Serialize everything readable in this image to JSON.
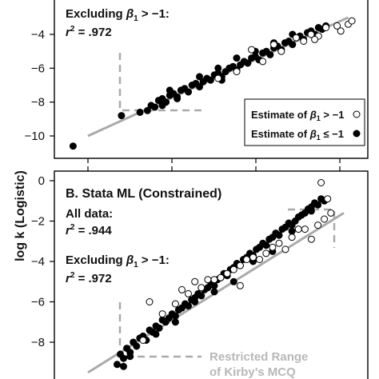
{
  "y_axis_label": "log k (Logistic)",
  "chart_data": [
    {
      "type": "scatter",
      "panel": "A (top, cropped)",
      "title": "",
      "ylabel": "log k (Logistic)",
      "ylim": [
        -11,
        -3.2
      ],
      "y_ticks": [
        -4,
        -6,
        -8,
        -10
      ],
      "y_tick_labels": [
        "−4",
        "−6",
        "−8",
        "−10"
      ],
      "annotations": {
        "excl_line1": "Excluding ",
        "excl_sym": "β",
        "excl_sub": "1",
        "excl_rel": " > −1:",
        "excl_r2_sym": "r",
        "excl_r2_sup": "2",
        "excl_r2_val": " = .972"
      },
      "legend": {
        "placement": "bottom-right",
        "open_prefix": "Estimate of ",
        "open_sym": "β",
        "open_sub": "1",
        "open_rel": " > −1",
        "filled_prefix": "Estimate of ",
        "filled_sym": "β",
        "filled_sub": "1",
        "filled_rel": " ≤ −1"
      },
      "series": [
        {
          "marker": "filled",
          "x": [
            -8.6,
            -8.4,
            -8.3,
            -8.2,
            -8.1,
            -8.0,
            -7.9,
            -7.8,
            -7.7,
            -7.6,
            -7.5,
            -7.4,
            -7.3,
            -7.2,
            -7.1,
            -7.0,
            -6.9,
            -6.8,
            -6.7,
            -6.6,
            -6.5,
            -6.4,
            -6.3,
            -6.2,
            -6.1,
            -6.0,
            -5.9,
            -5.8,
            -5.7,
            -5.6,
            -5.5,
            -5.4,
            -5.3,
            -5.2,
            -5.1,
            -5.0,
            -4.9,
            -4.8,
            -4.7,
            -4.6,
            -4.5,
            -4.4,
            -4.3,
            -4.2,
            -4.1,
            -4.0,
            -3.9,
            -3.8,
            -3.7,
            -3.6,
            -7.8,
            -7.0,
            -6.5,
            -6.0,
            -5.5,
            -5.0,
            -4.5,
            -8.0,
            -9.1,
            -10.4,
            -6.4,
            -7.6
          ],
          "y": [
            -8.6,
            -8.5,
            -8.2,
            -8.3,
            -7.9,
            -7.8,
            -8.0,
            -7.6,
            -7.5,
            -7.7,
            -7.3,
            -7.2,
            -7.4,
            -7.0,
            -6.9,
            -7.1,
            -6.8,
            -6.6,
            -6.7,
            -6.4,
            -6.3,
            -6.5,
            -6.2,
            -6.0,
            -5.9,
            -6.1,
            -5.8,
            -5.6,
            -5.7,
            -5.4,
            -5.3,
            -5.5,
            -5.1,
            -5.0,
            -5.2,
            -4.8,
            -4.7,
            -4.9,
            -4.5,
            -4.4,
            -4.6,
            -4.2,
            -4.1,
            -4.3,
            -3.9,
            -3.8,
            -4.0,
            -3.6,
            -3.7,
            -3.5,
            -7.3,
            -6.5,
            -6.0,
            -5.4,
            -5.0,
            -4.5,
            -4.0,
            -8.2,
            -8.8,
            -10.6,
            -6.7,
            -7.8
          ]
        },
        {
          "marker": "open",
          "x": [
            -5.6,
            -5.0,
            -4.8,
            -4.4,
            -4.0,
            -3.6,
            -3.3,
            -3.0,
            -6.0,
            -5.3,
            -4.2,
            -3.8,
            -3.2,
            -6.5,
            -3.9,
            -2.9
          ],
          "y": [
            -4.9,
            -4.6,
            -5.0,
            -4.2,
            -4.0,
            -3.6,
            -3.5,
            -3.4,
            -6.2,
            -5.6,
            -4.4,
            -4.1,
            -3.8,
            -6.6,
            -4.3,
            -3.2
          ]
        }
      ],
      "fit_line": {
        "x": [
          -10.0,
          -3.0
        ],
        "y": [
          -10.0,
          -3.0
        ]
      }
    },
    {
      "type": "scatter",
      "panel": "B",
      "title": "B.  Stata ML (Constrained)",
      "ylabel": "log k (Logistic)",
      "ylim": [
        -9.5,
        0.35
      ],
      "y_ticks": [
        0,
        -2,
        -4,
        -6,
        -8
      ],
      "y_tick_labels": [
        "0",
        "−2",
        "−4",
        "−6",
        "−8"
      ],
      "annotations": {
        "all_data": "All data:",
        "all_r2_sym": "r",
        "all_r2_sup": "2",
        "all_r2_val": " = .944",
        "excl_line1": "Excluding ",
        "excl_sym": "β",
        "excl_sub": "1",
        "excl_rel": " > −1:",
        "excl_r2_sym": "r",
        "excl_r2_sup": "2",
        "excl_r2_val": " = .972",
        "restricted_line1": "Restricted Range",
        "restricted_line2": "of Kirby’s MCQ"
      },
      "series": [
        {
          "marker": "filled",
          "x": [
            -8.6,
            -8.5,
            -8.4,
            -8.3,
            -8.2,
            -8.1,
            -8.0,
            -7.9,
            -7.8,
            -7.7,
            -7.6,
            -7.5,
            -7.4,
            -7.3,
            -7.2,
            -7.1,
            -7.0,
            -6.9,
            -6.8,
            -6.7,
            -6.6,
            -6.5,
            -6.4,
            -6.3,
            -6.2,
            -6.1,
            -6.0,
            -5.9,
            -5.8,
            -5.7,
            -5.6,
            -5.5,
            -5.4,
            -5.3,
            -5.2,
            -5.1,
            -5.0,
            -4.9,
            -4.8,
            -4.7,
            -4.6,
            -4.5,
            -4.4,
            -4.3,
            -4.2,
            -4.1,
            -4.0,
            -3.9,
            -3.8,
            -3.7,
            -3.6,
            -3.5,
            -3.4,
            -3.3,
            -3.2,
            -3.1,
            -3.0,
            -2.9,
            -2.8,
            -2.7,
            -2.6,
            -2.5,
            -2.4,
            -2.3,
            -2.2,
            -8.4,
            -8.2,
            -7.4,
            -6.8,
            -6.2,
            -5.6,
            -5.0,
            -4.4,
            -3.8,
            -3.2,
            -2.6
          ],
          "y": [
            -9.1,
            -8.6,
            -8.8,
            -8.3,
            -8.5,
            -8.0,
            -8.2,
            -7.8,
            -7.7,
            -7.9,
            -7.4,
            -7.5,
            -7.2,
            -7.3,
            -6.9,
            -7.0,
            -6.8,
            -6.6,
            -6.7,
            -6.4,
            -6.3,
            -6.1,
            -6.2,
            -5.9,
            -5.8,
            -5.6,
            -5.7,
            -5.4,
            -5.3,
            -5.1,
            -5.2,
            -4.9,
            -4.8,
            -4.6,
            -4.7,
            -4.4,
            -4.3,
            -4.1,
            -4.2,
            -3.9,
            -3.8,
            -3.6,
            -3.7,
            -3.4,
            -3.3,
            -3.1,
            -3.2,
            -2.9,
            -2.8,
            -2.6,
            -2.7,
            -2.4,
            -2.3,
            -2.1,
            -2.2,
            -2.0,
            -1.8,
            -1.7,
            -1.6,
            -1.4,
            -1.3,
            -1.1,
            -1.2,
            -0.9,
            -1.0,
            -9.2,
            -8.7,
            -7.6,
            -7.0,
            -6.0,
            -5.5,
            -5.0,
            -4.0,
            -3.5,
            -2.5,
            -1.5
          ]
        },
        {
          "marker": "open",
          "x": [
            -7.8,
            -7.2,
            -6.8,
            -6.4,
            -6.0,
            -5.6,
            -5.2,
            -4.8,
            -4.4,
            -4.0,
            -3.6,
            -3.2,
            -2.8,
            -2.4,
            -2.2,
            -2.0,
            -7.6,
            -6.6,
            -5.8,
            -5.0,
            -4.2,
            -3.4,
            -2.6,
            -2.1,
            -6.2,
            -5.4,
            -4.6,
            -3.8,
            -3.0,
            -4.8,
            -2.3
          ],
          "y": [
            -7.9,
            -6.6,
            -6.1,
            -5.6,
            -5.3,
            -4.9,
            -4.6,
            -4.2,
            -3.8,
            -3.6,
            -3.1,
            -2.8,
            -2.4,
            -2.2,
            -1.9,
            -1.6,
            -6.0,
            -5.4,
            -4.9,
            -4.4,
            -3.9,
            -3.4,
            -2.9,
            -0.9,
            -5.0,
            -4.8,
            -3.9,
            -3.3,
            -2.4,
            -5.2,
            -0.1
          ]
        }
      ],
      "fit_line": {
        "x": [
          -9.5,
          -1.6
        ],
        "y": [
          -9.5,
          -1.6
        ]
      }
    }
  ]
}
